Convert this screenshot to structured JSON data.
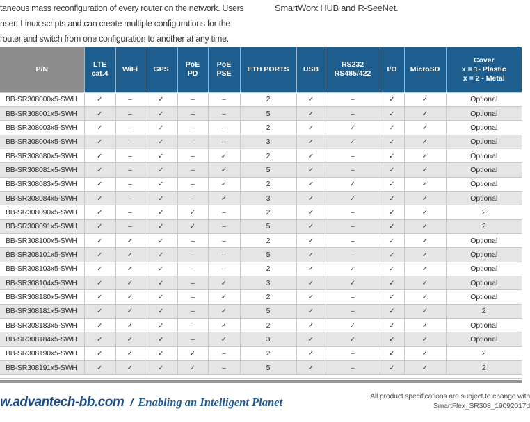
{
  "intro": {
    "left_lines": [
      "taneous mass reconfiguration of every router on the network. Users",
      "nsert Linux scripts and can create multiple configurations for the",
      "router and switch from one configuration to another at any time."
    ],
    "right_line": "SmartWorx HUB and R-SeeNet."
  },
  "table": {
    "header": {
      "pn": "P/N",
      "cols": [
        "LTE\ncat.4",
        "WiFi",
        "GPS",
        "PoE\nPD",
        "PoE\nPSE",
        "ETH PORTS",
        "USB",
        "RS232\nRS485/422",
        "I/O",
        "MicroSD",
        "Cover\nx = 1- Plastic\nx = 2 - Metal"
      ]
    },
    "rows": [
      {
        "pn": "BB-SR308000x5-SWH",
        "cells": [
          "✓",
          "–",
          "✓",
          "–",
          "–",
          "2",
          "✓",
          "–",
          "✓",
          "✓",
          "Optional"
        ]
      },
      {
        "pn": "BB-SR308001x5-SWH",
        "cells": [
          "✓",
          "–",
          "✓",
          "–",
          "–",
          "5",
          "✓",
          "–",
          "✓",
          "✓",
          "Optional"
        ]
      },
      {
        "pn": "BB-SR308003x5-SWH",
        "cells": [
          "✓",
          "–",
          "✓",
          "–",
          "–",
          "2",
          "✓",
          "✓",
          "✓",
          "✓",
          "Optional"
        ]
      },
      {
        "pn": "BB-SR308004x5-SWH",
        "cells": [
          "✓",
          "–",
          "✓",
          "–",
          "–",
          "3",
          "✓",
          "✓",
          "✓",
          "✓",
          "Optional"
        ]
      },
      {
        "pn": "BB-SR308080x5-SWH",
        "cells": [
          "✓",
          "–",
          "✓",
          "–",
          "✓",
          "2",
          "✓",
          "–",
          "✓",
          "✓",
          "Optional"
        ]
      },
      {
        "pn": "BB-SR308081x5-SWH",
        "cells": [
          "✓",
          "–",
          "✓",
          "–",
          "✓",
          "5",
          "✓",
          "–",
          "✓",
          "✓",
          "Optional"
        ]
      },
      {
        "pn": "BB-SR308083x5-SWH",
        "cells": [
          "✓",
          "–",
          "✓",
          "–",
          "✓",
          "2",
          "✓",
          "✓",
          "✓",
          "✓",
          "Optional"
        ]
      },
      {
        "pn": "BB-SR308084x5-SWH",
        "cells": [
          "✓",
          "–",
          "✓",
          "–",
          "✓",
          "3",
          "✓",
          "✓",
          "✓",
          "✓",
          "Optional"
        ]
      },
      {
        "pn": "BB-SR308090x5-SWH",
        "cells": [
          "✓",
          "–",
          "✓",
          "✓",
          "–",
          "2",
          "✓",
          "–",
          "✓",
          "✓",
          "2"
        ]
      },
      {
        "pn": "BB-SR308091x5-SWH",
        "cells": [
          "✓",
          "–",
          "✓",
          "✓",
          "–",
          "5",
          "✓",
          "–",
          "✓",
          "✓",
          "2"
        ]
      },
      {
        "pn": "BB-SR308100x5-SWH",
        "cells": [
          "✓",
          "✓",
          "✓",
          "–",
          "–",
          "2",
          "✓",
          "–",
          "✓",
          "✓",
          "Optional"
        ]
      },
      {
        "pn": "BB-SR308101x5-SWH",
        "cells": [
          "✓",
          "✓",
          "✓",
          "–",
          "–",
          "5",
          "✓",
          "–",
          "✓",
          "✓",
          "Optional"
        ]
      },
      {
        "pn": "BB-SR308103x5-SWH",
        "cells": [
          "✓",
          "✓",
          "✓",
          "–",
          "–",
          "2",
          "✓",
          "✓",
          "✓",
          "✓",
          "Optional"
        ]
      },
      {
        "pn": "BB-SR308104x5-SWH",
        "cells": [
          "✓",
          "✓",
          "✓",
          "–",
          "✓",
          "3",
          "✓",
          "✓",
          "✓",
          "✓",
          "Optional"
        ]
      },
      {
        "pn": "BB-SR308180x5-SWH",
        "cells": [
          "✓",
          "✓",
          "✓",
          "–",
          "✓",
          "2",
          "✓",
          "–",
          "✓",
          "✓",
          "Optional"
        ]
      },
      {
        "pn": "BB-SR308181x5-SWH",
        "cells": [
          "✓",
          "✓",
          "✓",
          "–",
          "✓",
          "5",
          "✓",
          "–",
          "✓",
          "✓",
          "2"
        ]
      },
      {
        "pn": "BB-SR308183x5-SWH",
        "cells": [
          "✓",
          "✓",
          "✓",
          "–",
          "✓",
          "2",
          "✓",
          "✓",
          "✓",
          "✓",
          "Optional"
        ]
      },
      {
        "pn": "BB-SR308184x5-SWH",
        "cells": [
          "✓",
          "✓",
          "✓",
          "–",
          "✓",
          "3",
          "✓",
          "✓",
          "✓",
          "✓",
          "Optional"
        ]
      },
      {
        "pn": "BB-SR308190x5-SWH",
        "cells": [
          "✓",
          "✓",
          "✓",
          "✓",
          "–",
          "2",
          "✓",
          "–",
          "✓",
          "✓",
          "2"
        ]
      },
      {
        "pn": "BB-SR308191x5-SWH",
        "cells": [
          "✓",
          "✓",
          "✓",
          "✓",
          "–",
          "5",
          "✓",
          "–",
          "✓",
          "✓",
          "2"
        ]
      }
    ],
    "colors": {
      "header_blue": "#1e5e8e",
      "header_gray": "#8d8d8d",
      "row_alt_gray": "#e5e5e5"
    }
  },
  "footer": {
    "site": "w.advantech-bb.com",
    "separator": "/",
    "tagline": "Enabling an Intelligent Planet",
    "note_line1": "All product specifications are subject to change with",
    "note_line2": "SmartFlex_SR308_19092017d",
    "brand_blue": "#1a4e8a"
  }
}
